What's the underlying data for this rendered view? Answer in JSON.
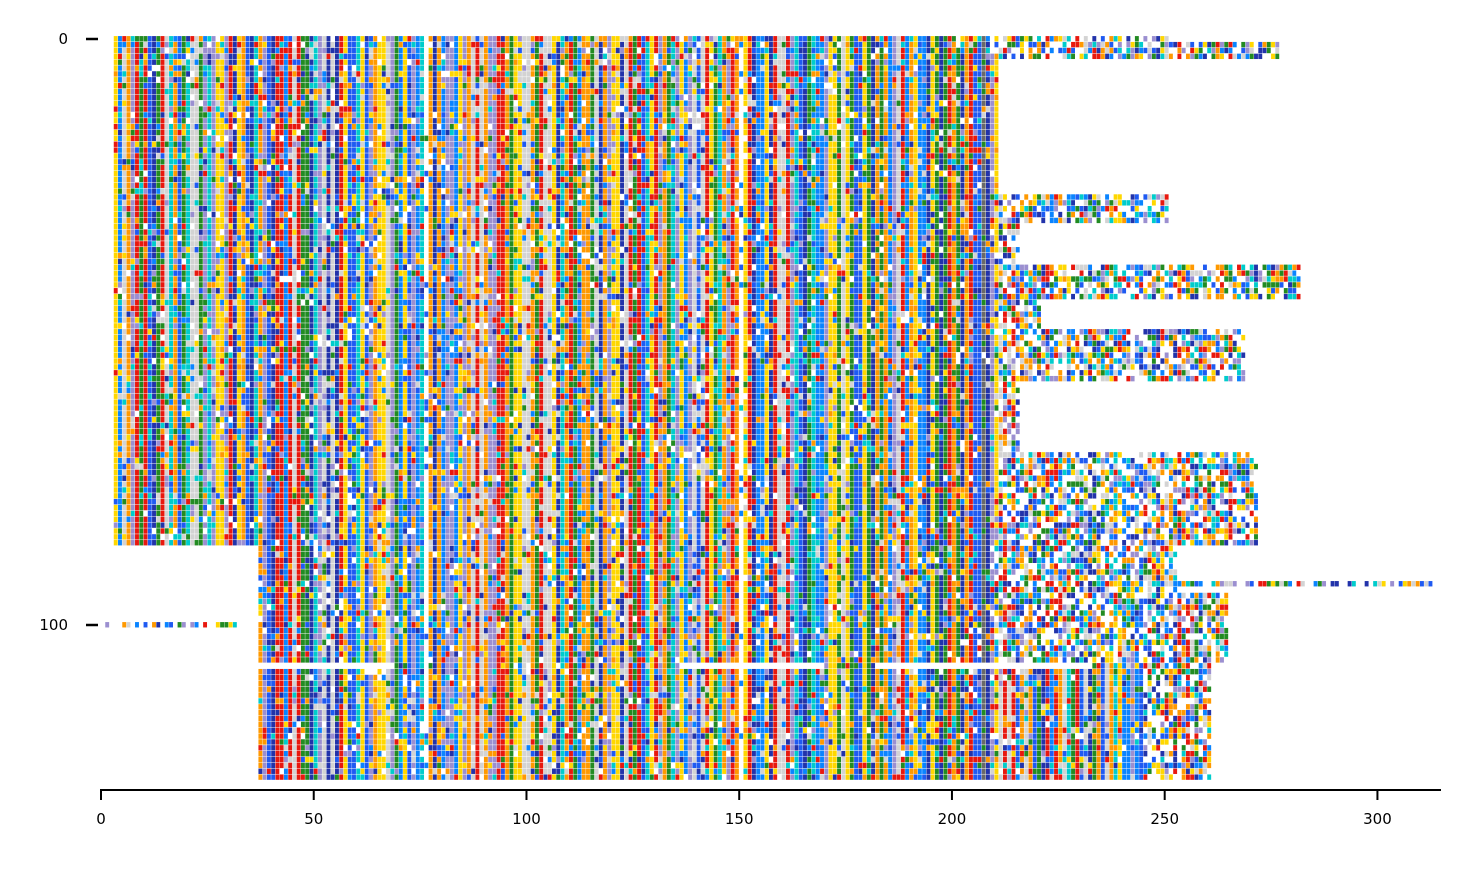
{
  "chart_data": {
    "type": "heatmap",
    "title": "",
    "xlabel": "",
    "ylabel": "",
    "xlim": [
      0,
      314
    ],
    "ylim": [
      127,
      -1
    ],
    "x_ticks": [
      {
        "value": 0,
        "label": "0"
      },
      {
        "value": 50,
        "label": "50"
      },
      {
        "value": 100,
        "label": "100"
      },
      {
        "value": 150,
        "label": "150"
      },
      {
        "value": 200,
        "label": "200"
      },
      {
        "value": 250,
        "label": "250"
      },
      {
        "value": 300,
        "label": "300"
      }
    ],
    "y_ticks": [
      {
        "value": 0,
        "label": "0"
      },
      {
        "value": 100,
        "label": "100"
      }
    ],
    "grid": false,
    "legend": "none",
    "palette": [
      "#1f5af2",
      "#228b22",
      "#ff9900",
      "#e8180e",
      "#00cccc",
      "#0a84ff",
      "#d3d3d3",
      "#2233aa",
      "#ffd700",
      "#9b8fd0",
      "#696969",
      "#ffffff"
    ],
    "columns": 314,
    "row_groups": [
      {
        "rows": [
          0,
          0
        ],
        "start": 3,
        "core_end": 207,
        "tail_end": 250,
        "note": "header rows"
      },
      {
        "rows": [
          1,
          3
        ],
        "start": 3,
        "core_end": 207,
        "tail_end": 276
      },
      {
        "rows": [
          4,
          26
        ],
        "start": 3,
        "core_end": 210,
        "tail_end": 210
      },
      {
        "rows": [
          27,
          31
        ],
        "start": 3,
        "core_end": 210,
        "tail_end": 250
      },
      {
        "rows": [
          32,
          38
        ],
        "start": 3,
        "core_end": 210,
        "tail_end": 215
      },
      {
        "rows": [
          39,
          44
        ],
        "start": 3,
        "core_end": 210,
        "tail_end": 281
      },
      {
        "rows": [
          45,
          49
        ],
        "start": 3,
        "core_end": 210,
        "tail_end": 220
      },
      {
        "rows": [
          50,
          58
        ],
        "start": 3,
        "core_end": 210,
        "tail_end": 268
      },
      {
        "rows": [
          59,
          70
        ],
        "start": 3,
        "core_end": 210,
        "tail_end": 215
      },
      {
        "rows": [
          71,
          86
        ],
        "start": 3,
        "core_end": 210,
        "tail_end": 271
      },
      {
        "rows": [
          87,
          94
        ],
        "start": 37,
        "core_end": 208,
        "tail_end": 252
      },
      {
        "rows": [
          93,
          93
        ],
        "start": 37,
        "core_end": 208,
        "tail_end": 313
      },
      {
        "rows": [
          95,
          106
        ],
        "start": 37,
        "core_end": 208,
        "tail_end": 264
      },
      {
        "rows": [
          107,
          126
        ],
        "start": 37,
        "core_end": 244,
        "tail_end": 260
      },
      {
        "rows": [
          100,
          100
        ],
        "start": 0,
        "core_end": 31,
        "tail_end": 31,
        "note": "partial row at far left"
      }
    ],
    "gap_rows": [
      {
        "row": 107,
        "ranges": [
          [
            37,
            68
          ],
          [
            136,
            169
          ],
          [
            182,
            232
          ]
        ]
      }
    ],
    "conserved_columns": [
      {
        "col": 3,
        "color": "#ffd700"
      },
      {
        "col": 9,
        "color": "#228b22"
      },
      {
        "col": 11,
        "color": "#1f5af2"
      },
      {
        "col": 76,
        "color": "#ffffff"
      },
      {
        "col": 96,
        "color": "#228b22"
      },
      {
        "col": 127,
        "color": "#1f5af2"
      },
      {
        "col": 150,
        "color": "#ffffff"
      },
      {
        "col": 180,
        "color": "#228b22"
      },
      {
        "col": 207,
        "color": "#696969"
      }
    ]
  }
}
